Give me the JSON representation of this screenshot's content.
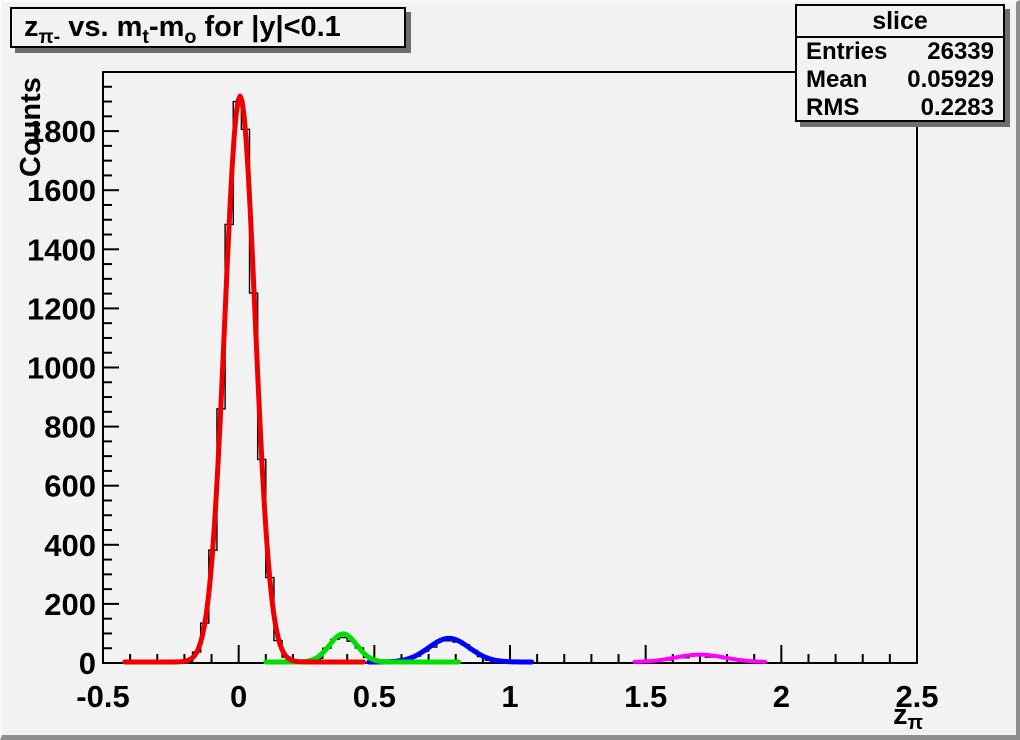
{
  "window": {
    "background": "#f2f2f2",
    "edge_dark": "#8f8f8f",
    "edge_light": "#fafafa"
  },
  "title_box": {
    "segments": [
      {
        "text": "z"
      },
      {
        "text": "π-",
        "sub": true
      },
      {
        "text": " vs. m"
      },
      {
        "text": "t",
        "sub": true
      },
      {
        "text": "-m"
      },
      {
        "text": "o",
        "sub": true
      },
      {
        "text": " for |y|<0.1"
      }
    ]
  },
  "stats_box": {
    "title": "slice",
    "rows": [
      {
        "label": "Entries",
        "value": "26339"
      },
      {
        "label": "Mean",
        "value": "0.05929"
      },
      {
        "label": "RMS",
        "value": "0.2283"
      }
    ]
  },
  "chart_data": {
    "type": "bar",
    "subtype": "histogram-with-gaussian-fits",
    "title": "z_{pi-} vs. m_t-m_o for |y|<0.1",
    "ylabel": "Counts",
    "xlabel_segments": [
      {
        "text": "z"
      },
      {
        "text": "π",
        "sub": true
      }
    ],
    "xlim": [
      -0.5,
      2.5
    ],
    "ylim": [
      0,
      2000
    ],
    "x_major_ticks": [
      {
        "v": -0.5,
        "label": "-0.5"
      },
      {
        "v": 0,
        "label": "0"
      },
      {
        "v": 0.5,
        "label": "0.5"
      },
      {
        "v": 1,
        "label": "1"
      },
      {
        "v": 1.5,
        "label": "1.5"
      },
      {
        "v": 2,
        "label": "2"
      },
      {
        "v": 2.5,
        "label": "2.5"
      }
    ],
    "x_minor_step": 0.1,
    "y_major_step": 200,
    "y_minor_step": 50,
    "grid": false,
    "legend": false,
    "histogram": {
      "bin_start": -0.5,
      "bin_end": 2.5,
      "bin_width": 0.03,
      "line_color": "#000000",
      "entries": 26339,
      "mean": 0.05929,
      "rms": 0.2283
    },
    "components": [
      {
        "name": "main-peak",
        "amplitude": 1915,
        "mean": 0.005,
        "sigma": 0.056
      },
      {
        "name": "second-peak",
        "amplitude": 95,
        "mean": 0.385,
        "sigma": 0.05
      },
      {
        "name": "third-peak",
        "amplitude": 80,
        "mean": 0.775,
        "sigma": 0.075
      },
      {
        "name": "fourth-peak",
        "amplitude": 25,
        "mean": 1.7,
        "sigma": 0.09
      }
    ],
    "fits": [
      {
        "name": "fit-blue-third-peak",
        "color": "#0000ff",
        "component": 2,
        "range": [
          0.48,
          1.08
        ],
        "width": 5
      },
      {
        "name": "fit-green-second-peak",
        "color": "#00dd00",
        "component": 1,
        "range": [
          0.1,
          0.81
        ],
        "width": 5
      },
      {
        "name": "fit-red-main-peak",
        "color": "#ee0000",
        "component": 0,
        "range": [
          -0.42,
          0.46
        ],
        "width": 5
      },
      {
        "name": "fit-magenta-fourth-peak",
        "color": "#ff00ff",
        "component": 3,
        "range": [
          1.46,
          1.94
        ],
        "width": 4
      }
    ]
  }
}
